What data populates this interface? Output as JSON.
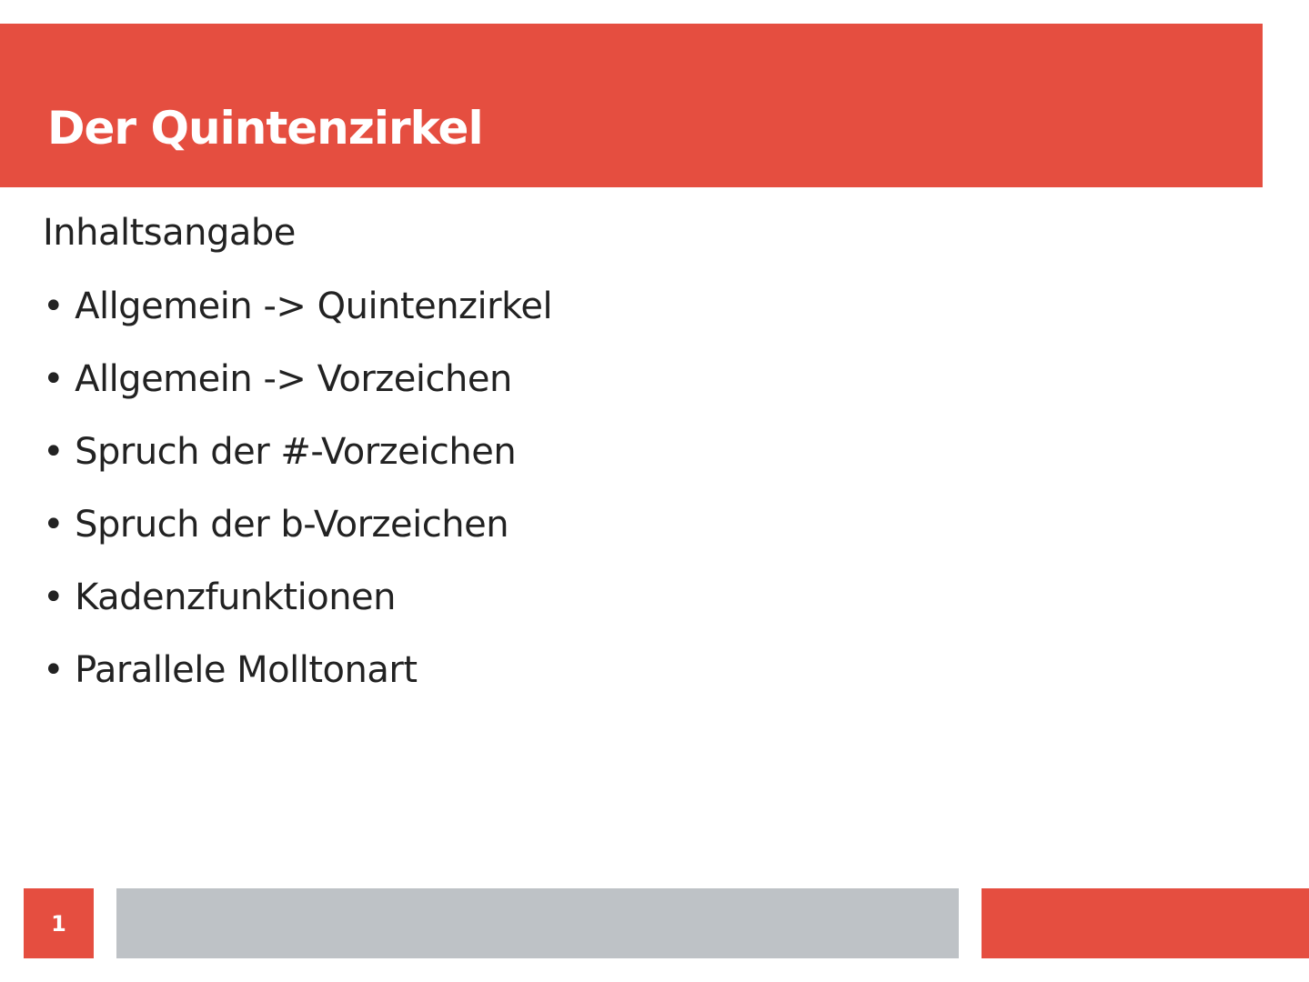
{
  "slide": {
    "title": "Der Quintenzirkel",
    "subtitle": "Inhaltsangabe",
    "items": [
      "Allgemein -> Quintenzirkel",
      "Allgemein -> Vorzeichen",
      "Spruch der #-Vorzeichen",
      "Spruch der b-Vorzeichen",
      "Kadenzfunktionen",
      "Parallele Molltonart"
    ],
    "page_number": "1"
  },
  "colors": {
    "accent": "#e54e40",
    "footer_gray": "#bec2c6"
  }
}
